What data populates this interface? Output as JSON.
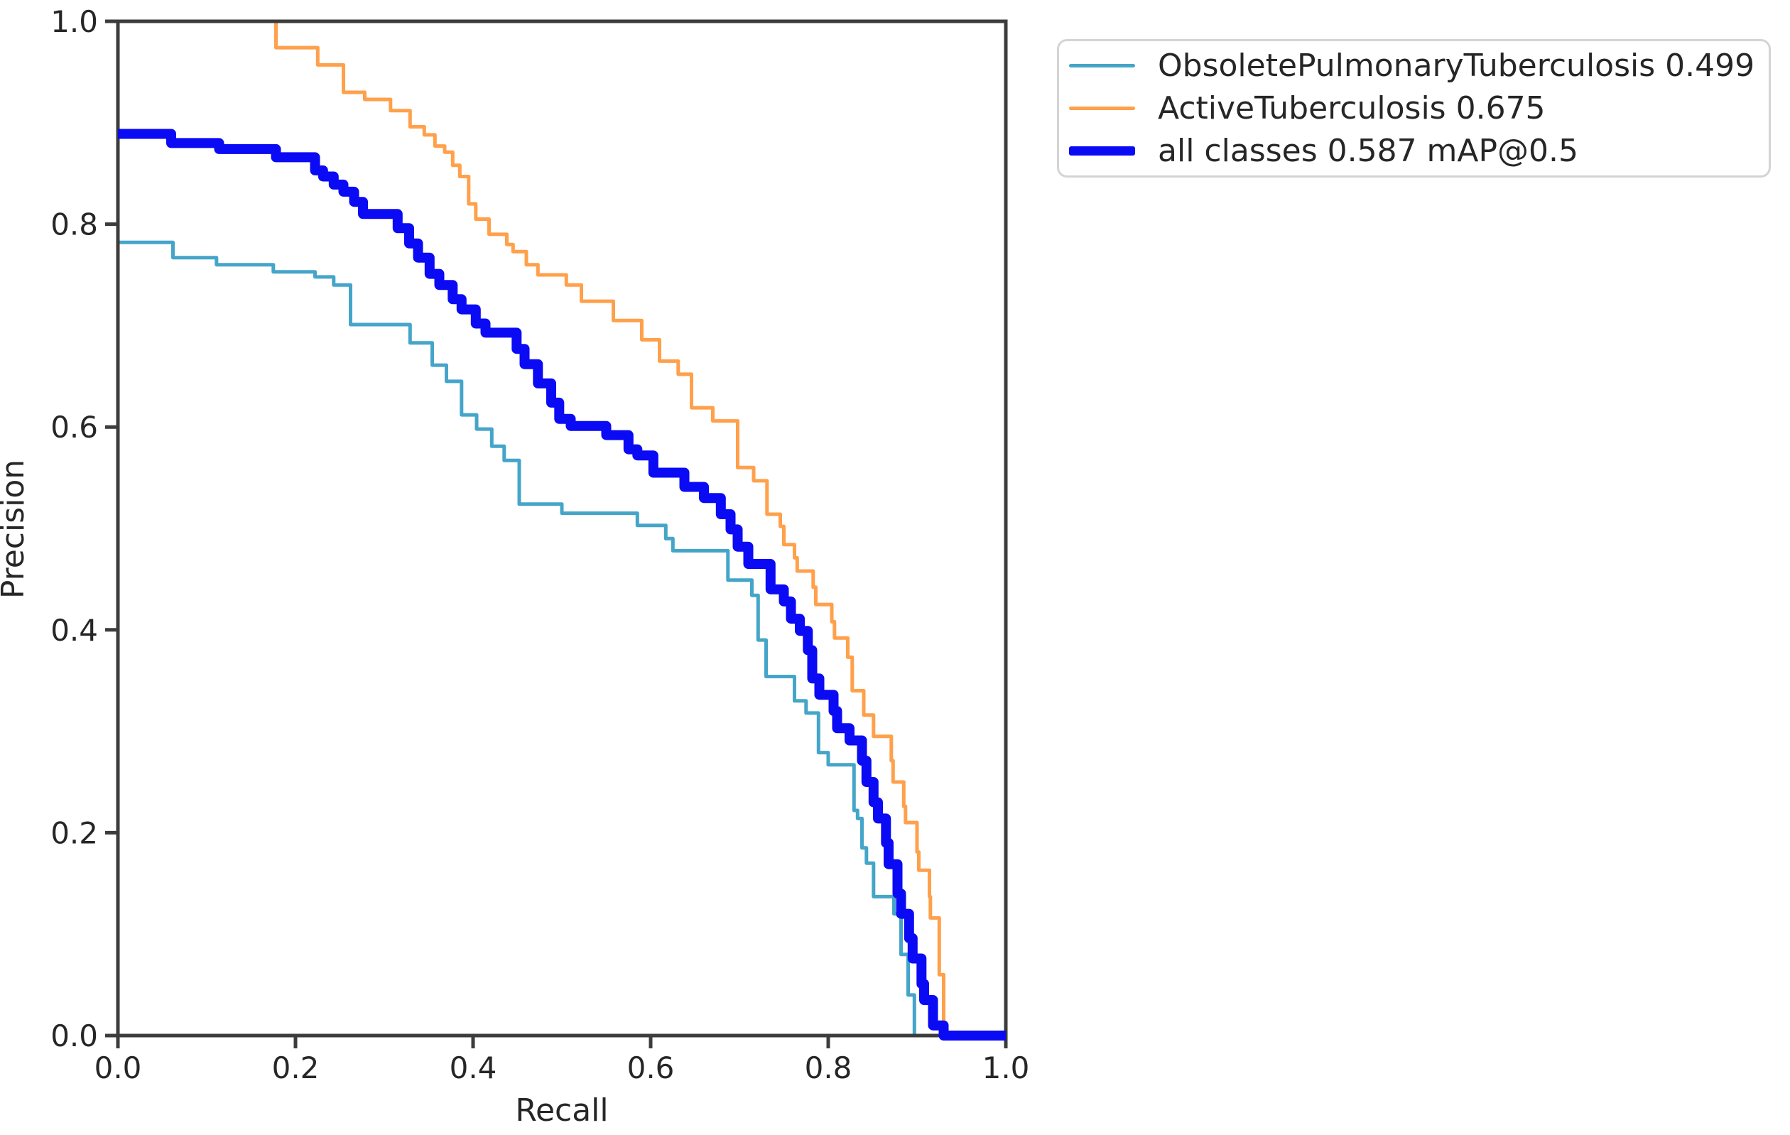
{
  "figure": {
    "background": "#ffffff",
    "spine_color": "#3c3c3c",
    "text_color": "#262626",
    "legend_border_color": "#d4d4d4"
  },
  "chart_data": {
    "type": "line",
    "subtype": "precision-recall step curve",
    "title": "",
    "xlabel": "Recall",
    "ylabel": "Precision",
    "xlim": [
      0.0,
      1.0
    ],
    "ylim": [
      0.0,
      1.0
    ],
    "x_ticks": [
      "0.0",
      "0.2",
      "0.4",
      "0.6",
      "0.8",
      "1.0"
    ],
    "y_ticks": [
      "0.0",
      "0.2",
      "0.4",
      "0.6",
      "0.8",
      "1.0"
    ],
    "grid": false,
    "legend_position": "upper-right outside plot",
    "series": [
      {
        "name": "ObsoletePulmonaryTuberculosis",
        "ap": 0.499,
        "legend_label": "ObsoletePulmonaryTuberculosis 0.499",
        "color": "#45a5c9",
        "width": 5,
        "points": [
          [
            0.0,
            0.782
          ],
          [
            0.062,
            0.767
          ],
          [
            0.111,
            0.76
          ],
          [
            0.175,
            0.753
          ],
          [
            0.222,
            0.748
          ],
          [
            0.243,
            0.74
          ],
          [
            0.262,
            0.701
          ],
          [
            0.329,
            0.683
          ],
          [
            0.354,
            0.661
          ],
          [
            0.37,
            0.645
          ],
          [
            0.387,
            0.612
          ],
          [
            0.404,
            0.598
          ],
          [
            0.421,
            0.581
          ],
          [
            0.435,
            0.567
          ],
          [
            0.452,
            0.524
          ],
          [
            0.5,
            0.515
          ],
          [
            0.585,
            0.503
          ],
          [
            0.617,
            0.49
          ],
          [
            0.625,
            0.478
          ],
          [
            0.687,
            0.449
          ],
          [
            0.714,
            0.434
          ],
          [
            0.721,
            0.39
          ],
          [
            0.73,
            0.354
          ],
          [
            0.762,
            0.33
          ],
          [
            0.775,
            0.318
          ],
          [
            0.789,
            0.279
          ],
          [
            0.8,
            0.267
          ],
          [
            0.829,
            0.222
          ],
          [
            0.833,
            0.214
          ],
          [
            0.838,
            0.185
          ],
          [
            0.843,
            0.17
          ],
          [
            0.851,
            0.137
          ],
          [
            0.874,
            0.12
          ],
          [
            0.882,
            0.08
          ],
          [
            0.89,
            0.04
          ],
          [
            0.897,
            0.0
          ]
        ]
      },
      {
        "name": "ActiveTuberculosis",
        "ap": 0.675,
        "legend_label": "ActiveTuberculosis 0.675",
        "color": "#ffa04b",
        "width": 5,
        "points": [
          [
            0.0,
            1.0
          ],
          [
            0.178,
            0.974
          ],
          [
            0.225,
            0.957
          ],
          [
            0.254,
            0.93
          ],
          [
            0.278,
            0.923
          ],
          [
            0.307,
            0.912
          ],
          [
            0.329,
            0.896
          ],
          [
            0.345,
            0.888
          ],
          [
            0.357,
            0.877
          ],
          [
            0.368,
            0.871
          ],
          [
            0.377,
            0.858
          ],
          [
            0.385,
            0.847
          ],
          [
            0.395,
            0.82
          ],
          [
            0.403,
            0.805
          ],
          [
            0.418,
            0.79
          ],
          [
            0.438,
            0.78
          ],
          [
            0.445,
            0.773
          ],
          [
            0.46,
            0.76
          ],
          [
            0.473,
            0.75
          ],
          [
            0.505,
            0.74
          ],
          [
            0.522,
            0.724
          ],
          [
            0.558,
            0.705
          ],
          [
            0.59,
            0.686
          ],
          [
            0.61,
            0.665
          ],
          [
            0.631,
            0.652
          ],
          [
            0.646,
            0.619
          ],
          [
            0.67,
            0.606
          ],
          [
            0.698,
            0.56
          ],
          [
            0.716,
            0.547
          ],
          [
            0.731,
            0.514
          ],
          [
            0.746,
            0.502
          ],
          [
            0.75,
            0.484
          ],
          [
            0.762,
            0.471
          ],
          [
            0.765,
            0.458
          ],
          [
            0.783,
            0.442
          ],
          [
            0.786,
            0.425
          ],
          [
            0.804,
            0.408
          ],
          [
            0.807,
            0.392
          ],
          [
            0.822,
            0.373
          ],
          [
            0.827,
            0.34
          ],
          [
            0.84,
            0.316
          ],
          [
            0.851,
            0.295
          ],
          [
            0.871,
            0.271
          ],
          [
            0.873,
            0.25
          ],
          [
            0.885,
            0.226
          ],
          [
            0.887,
            0.21
          ],
          [
            0.9,
            0.181
          ],
          [
            0.902,
            0.163
          ],
          [
            0.914,
            0.137
          ],
          [
            0.915,
            0.116
          ],
          [
            0.925,
            0.06
          ],
          [
            0.93,
            0.0
          ]
        ]
      },
      {
        "name": "all classes",
        "ap": 0.587,
        "map_label": "mAP@0.5",
        "legend_label": "all classes 0.587 mAP@0.5",
        "color": "#0a0af5",
        "width": 14,
        "points": [
          [
            0.0,
            0.889
          ],
          [
            0.06,
            0.88
          ],
          [
            0.114,
            0.874
          ],
          [
            0.178,
            0.866
          ],
          [
            0.222,
            0.853
          ],
          [
            0.231,
            0.847
          ],
          [
            0.243,
            0.839
          ],
          [
            0.254,
            0.832
          ],
          [
            0.266,
            0.822
          ],
          [
            0.276,
            0.81
          ],
          [
            0.315,
            0.796
          ],
          [
            0.328,
            0.781
          ],
          [
            0.338,
            0.767
          ],
          [
            0.351,
            0.751
          ],
          [
            0.362,
            0.74
          ],
          [
            0.377,
            0.726
          ],
          [
            0.387,
            0.716
          ],
          [
            0.403,
            0.702
          ],
          [
            0.414,
            0.693
          ],
          [
            0.449,
            0.677
          ],
          [
            0.458,
            0.662
          ],
          [
            0.473,
            0.643
          ],
          [
            0.488,
            0.624
          ],
          [
            0.497,
            0.608
          ],
          [
            0.51,
            0.601
          ],
          [
            0.55,
            0.592
          ],
          [
            0.575,
            0.578
          ],
          [
            0.585,
            0.572
          ],
          [
            0.603,
            0.555
          ],
          [
            0.638,
            0.541
          ],
          [
            0.66,
            0.53
          ],
          [
            0.679,
            0.514
          ],
          [
            0.69,
            0.499
          ],
          [
            0.698,
            0.482
          ],
          [
            0.71,
            0.465
          ],
          [
            0.735,
            0.44
          ],
          [
            0.75,
            0.428
          ],
          [
            0.758,
            0.411
          ],
          [
            0.768,
            0.399
          ],
          [
            0.777,
            0.38
          ],
          [
            0.782,
            0.352
          ],
          [
            0.79,
            0.336
          ],
          [
            0.806,
            0.32
          ],
          [
            0.81,
            0.303
          ],
          [
            0.824,
            0.291
          ],
          [
            0.838,
            0.271
          ],
          [
            0.843,
            0.25
          ],
          [
            0.851,
            0.23
          ],
          [
            0.856,
            0.214
          ],
          [
            0.865,
            0.19
          ],
          [
            0.868,
            0.169
          ],
          [
            0.878,
            0.14
          ],
          [
            0.882,
            0.12
          ],
          [
            0.891,
            0.096
          ],
          [
            0.895,
            0.076
          ],
          [
            0.905,
            0.051
          ],
          [
            0.908,
            0.035
          ],
          [
            0.918,
            0.01
          ],
          [
            0.93,
            0.0
          ],
          [
            1.0,
            0.0
          ]
        ]
      }
    ]
  }
}
